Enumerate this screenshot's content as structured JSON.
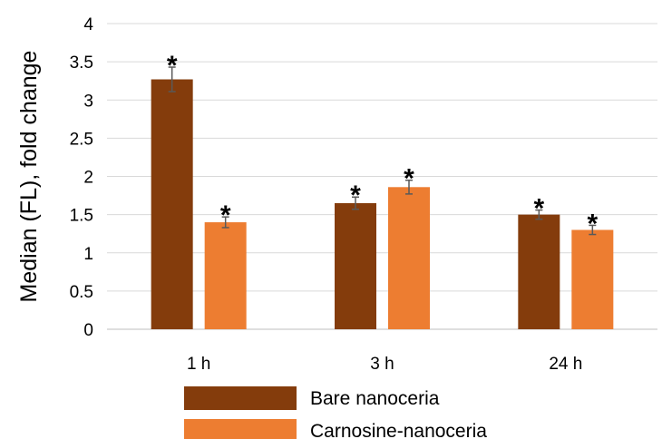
{
  "chart_data": {
    "type": "bar",
    "categories": [
      "1 h",
      "3 h",
      "24 h"
    ],
    "series": [
      {
        "name": "Bare nanoceria",
        "color": "#843c0c",
        "values": [
          3.27,
          1.65,
          1.5
        ],
        "errors": [
          0.16,
          0.08,
          0.06
        ],
        "annotations": [
          "*",
          "*",
          "*"
        ]
      },
      {
        "name": "Carnosine-nanoceria",
        "color": "#ed7d31",
        "values": [
          1.4,
          1.86,
          1.3
        ],
        "errors": [
          0.07,
          0.09,
          0.06
        ],
        "annotations": [
          "*",
          "*",
          "*"
        ]
      }
    ],
    "ylabel": "Median (FL), fold change",
    "xlabel": "",
    "ylim": [
      0,
      4
    ],
    "yticks": [
      "0",
      "0.5",
      "1",
      "1.5",
      "2",
      "2.5",
      "3",
      "3.5",
      "4"
    ],
    "grid": true,
    "legend_position": "bottom"
  }
}
